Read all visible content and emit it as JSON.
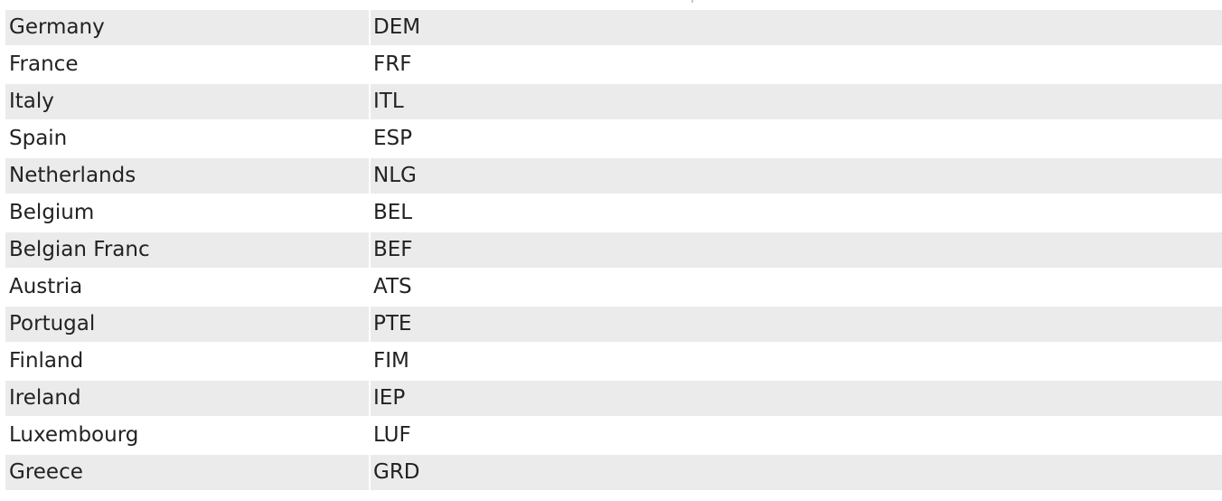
{
  "table": {
    "rows": [
      {
        "country": "Germany",
        "code": "DEM"
      },
      {
        "country": "France",
        "code": "FRF"
      },
      {
        "country": "Italy",
        "code": "ITL"
      },
      {
        "country": "Spain",
        "code": "ESP"
      },
      {
        "country": "Netherlands",
        "code": "NLG"
      },
      {
        "country": "Belgium",
        "code": "BEL"
      },
      {
        "country": "Belgian Franc",
        "code": "BEF"
      },
      {
        "country": "Austria",
        "code": "ATS"
      },
      {
        "country": "Portugal",
        "code": "PTE"
      },
      {
        "country": "Finland",
        "code": "FIM"
      },
      {
        "country": "Ireland",
        "code": "IEP"
      },
      {
        "country": "Luxembourg",
        "code": "LUF"
      },
      {
        "country": "Greece",
        "code": "GRD"
      }
    ],
    "stripe_color": "#ebebeb",
    "text_color": "#222222"
  }
}
